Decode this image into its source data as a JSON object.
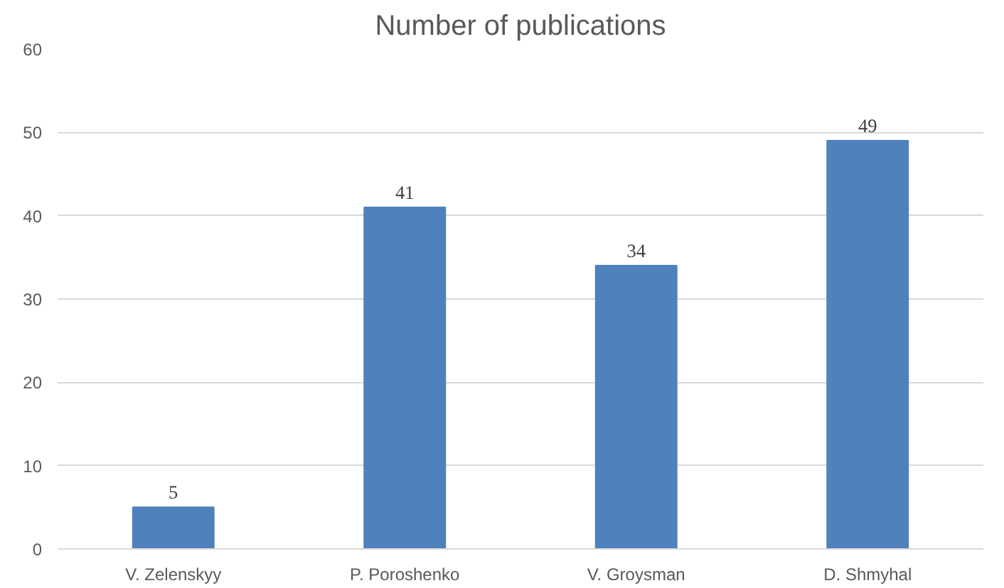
{
  "chart_data": {
    "type": "bar",
    "title": "Number of publications",
    "categories": [
      "V. Zelenskyy",
      "P. Poroshenko",
      "V. Groysman",
      "D. Shmyhal"
    ],
    "values": [
      5,
      41,
      34,
      49
    ],
    "color": "#4f81bd",
    "ylim": [
      0,
      60
    ],
    "yticks": [
      0,
      10,
      20,
      30,
      40,
      50,
      60
    ],
    "grid": "y",
    "data_labels": true
  }
}
